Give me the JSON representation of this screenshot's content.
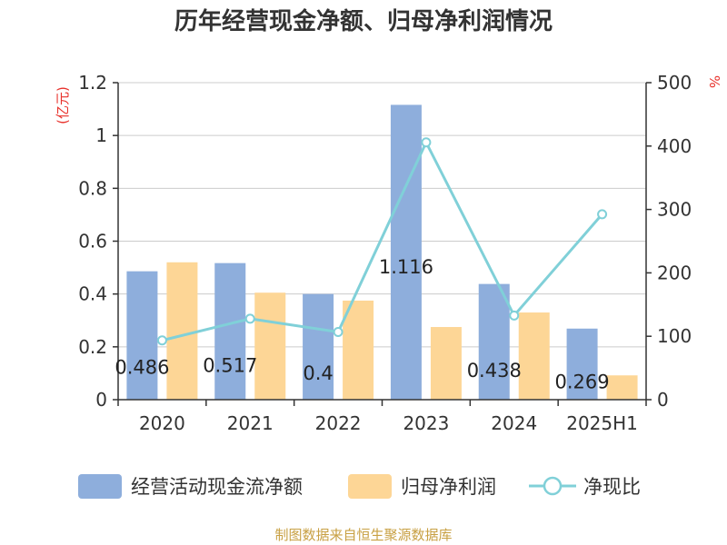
{
  "chart_data": {
    "type": "bar",
    "title": "历年经营现金净额、归母净利润情况",
    "categories": [
      "2020",
      "2021",
      "2022",
      "2023",
      "2024",
      "2025H1"
    ],
    "left_axis": {
      "unit": "(亿元)",
      "ticks": [
        "0",
        "0.2",
        "0.4",
        "0.6",
        "0.8",
        "1",
        "1.2"
      ],
      "ylim": [
        0,
        1.2
      ]
    },
    "right_axis": {
      "unit": "%",
      "ticks": [
        "0",
        "100",
        "200",
        "300",
        "400",
        "500"
      ],
      "ylim": [
        0,
        500
      ]
    },
    "series": [
      {
        "name": "经营活动现金流净额",
        "type": "bar",
        "axis": "left",
        "color": "#8eaedc",
        "values": [
          0.486,
          0.517,
          0.4,
          1.116,
          0.438,
          0.269
        ],
        "labels": [
          "0.486",
          "0.517",
          "0.4",
          "1.116",
          "0.438",
          "0.269"
        ]
      },
      {
        "name": "归母净利润",
        "type": "bar",
        "axis": "left",
        "color": "#fdd696",
        "values": [
          0.52,
          0.405,
          0.375,
          0.275,
          0.33,
          0.092
        ]
      },
      {
        "name": "净现比",
        "type": "line",
        "axis": "right",
        "color": "#80d0d8",
        "values": [
          93.5,
          127.7,
          106.7,
          405.8,
          132.7,
          292.4
        ]
      }
    ],
    "grid": true,
    "legend": "bottom",
    "source": "制图数据来自恒生聚源数据库"
  }
}
